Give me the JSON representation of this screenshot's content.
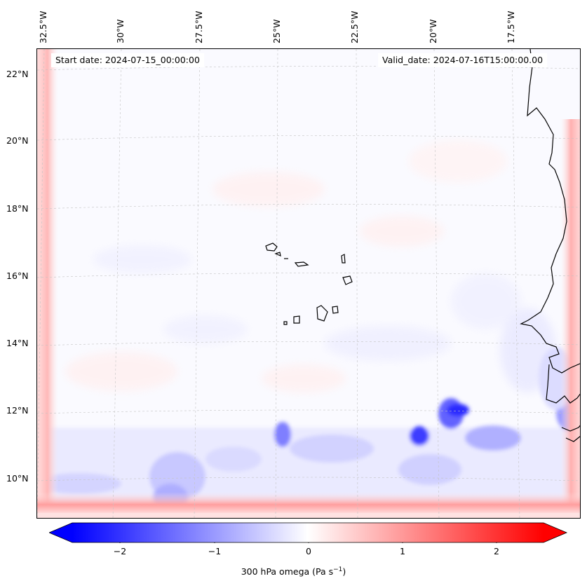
{
  "map": {
    "start_date": "Start date: 2024-07-15_00:00:00",
    "valid_date": "Valid_date: 2024-07-16T15:00:00.00",
    "lat_ticks": [
      "22°N",
      "20°N",
      "18°N",
      "16°N",
      "14°N",
      "12°N",
      "10°N"
    ],
    "lon_ticks": [
      "32.5°W",
      "30°W",
      "27.5°W",
      "25°W",
      "22.5°W",
      "20°W",
      "17.5°W"
    ],
    "field": "omega",
    "gridlines": true
  },
  "colorbar": {
    "ticks": [
      "−2",
      "−1",
      "0",
      "1",
      "2"
    ],
    "label": "300 hPa omega (Pa s",
    "label_exponent": "−1",
    "label_close": ")",
    "range": [
      -2.5,
      2.5
    ],
    "extend": "both",
    "colors": {
      "min": "#0000ff",
      "mid": "#ffffff",
      "max": "#ff0000"
    }
  },
  "colors": {
    "coast": "#000000",
    "grid": "#bdbdbd",
    "background": "#fafaff"
  }
}
